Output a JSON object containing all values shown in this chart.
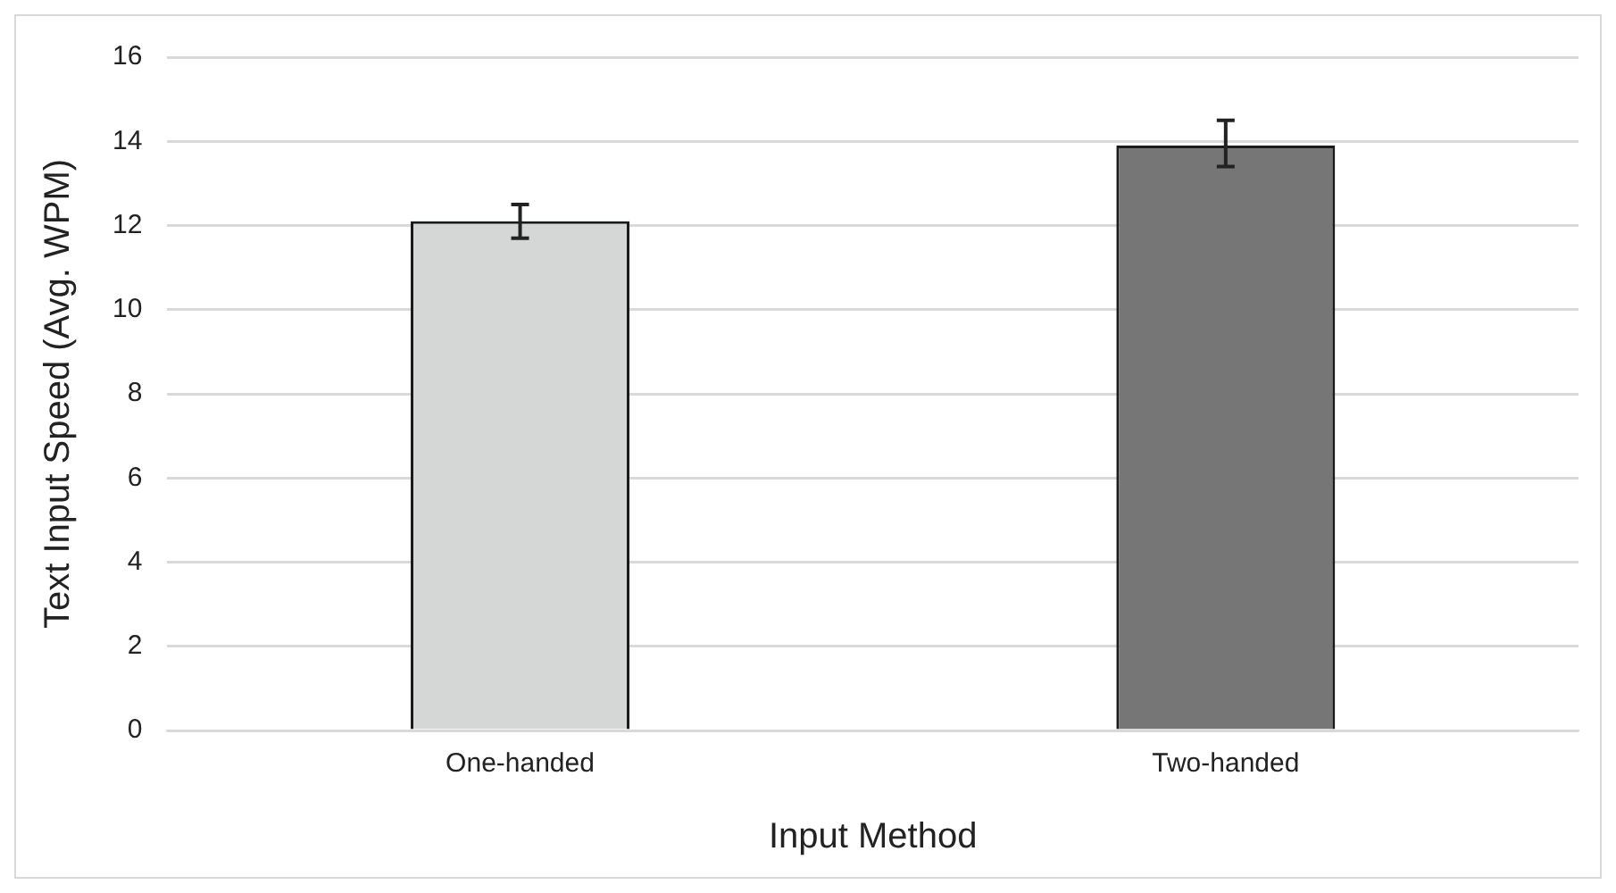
{
  "chart_data": {
    "type": "bar",
    "xlabel": "Input Method",
    "ylabel": "Text Input Speed (Avg. WPM)",
    "categories": [
      "One-handed",
      "Two-handed"
    ],
    "values": [
      12.1,
      13.9
    ],
    "colors": [
      "#d5d6d6",
      "#767676"
    ],
    "errors": [
      [
        11.7,
        12.5
      ],
      [
        13.4,
        14.5
      ]
    ],
    "ylim": [
      0,
      16
    ],
    "yticks": [
      0,
      2,
      4,
      6,
      8,
      10,
      12,
      14,
      16
    ],
    "grid": "y",
    "legend": false
  }
}
